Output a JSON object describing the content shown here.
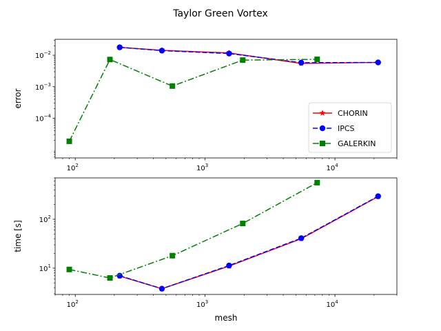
{
  "figure_title": "Taylor Green Vortex",
  "colors": {
    "chorin": "#ff0000",
    "ipcs": "#0000ff",
    "galerkin": "#008000"
  },
  "chart_data": [
    {
      "type": "line",
      "ylabel": "error",
      "x_scale": "log",
      "y_scale": "log",
      "xlim": [
        70,
        30000
      ],
      "ylim": [
        5.5e-06,
        0.032
      ],
      "x_ticks": [
        {
          "value": 100,
          "base": "10",
          "exp": "2"
        },
        {
          "value": 1000,
          "base": "10",
          "exp": "3"
        },
        {
          "value": 10000,
          "base": "10",
          "exp": "4"
        }
      ],
      "y_ticks": [
        {
          "value": 0.0001,
          "base": "10",
          "exp": "−4"
        },
        {
          "value": 0.001,
          "base": "10",
          "exp": "−3"
        },
        {
          "value": 0.01,
          "base": "10",
          "exp": "−2"
        }
      ],
      "legend": {
        "placement": "lower-right",
        "entries": [
          {
            "label": "CHORIN",
            "key": "chorin"
          },
          {
            "label": "IPCS",
            "key": "ipcs"
          },
          {
            "label": "GALERKIN",
            "key": "galerkin"
          }
        ]
      },
      "series": [
        {
          "name": "CHORIN",
          "key": "chorin",
          "style": "solid",
          "marker": "star",
          "x": [
            220,
            465,
            1530,
            5500,
            21500
          ],
          "y": [
            0.0178,
            0.0143,
            0.0118,
            0.0055,
            0.0059
          ]
        },
        {
          "name": "IPCS",
          "key": "ipcs",
          "style": "dashed",
          "marker": "circle",
          "x": [
            220,
            465,
            1530,
            5500,
            21500
          ],
          "y": [
            0.0178,
            0.014,
            0.0113,
            0.0058,
            0.0059
          ]
        },
        {
          "name": "GALERKIN",
          "key": "galerkin",
          "style": "dashdot",
          "marker": "square",
          "x": [
            90,
            185,
            560,
            1950,
            7300
          ],
          "y": [
            1.85e-05,
            0.0073,
            0.00105,
            0.007,
            0.0074
          ]
        }
      ]
    },
    {
      "type": "line",
      "ylabel": "time [s]",
      "xlabel": "mesh",
      "x_scale": "log",
      "y_scale": "log",
      "xlim": [
        70,
        30000
      ],
      "ylim": [
        2.9,
        700
      ],
      "x_ticks": [
        {
          "value": 100,
          "base": "10",
          "exp": "2"
        },
        {
          "value": 1000,
          "base": "10",
          "exp": "3"
        },
        {
          "value": 10000,
          "base": "10",
          "exp": "4"
        }
      ],
      "y_ticks": [
        {
          "value": 10,
          "base": "10",
          "exp": "1"
        },
        {
          "value": 100,
          "base": "10",
          "exp": "2"
        }
      ],
      "series": [
        {
          "name": "CHORIN",
          "key": "chorin",
          "style": "solid",
          "marker": "star",
          "x": [
            220,
            465,
            1530,
            5500,
            21500
          ],
          "y": [
            6.9,
            3.8,
            11.0,
            40,
            290
          ]
        },
        {
          "name": "IPCS",
          "key": "ipcs",
          "style": "dashed",
          "marker": "circle",
          "x": [
            220,
            465,
            1530,
            5500,
            21500
          ],
          "y": [
            7.0,
            3.8,
            11.3,
            41,
            295
          ]
        },
        {
          "name": "GALERKIN",
          "key": "galerkin",
          "style": "dashdot",
          "marker": "square",
          "x": [
            90,
            185,
            560,
            1950,
            7300
          ],
          "y": [
            9.4,
            6.3,
            18,
            82,
            560
          ]
        }
      ]
    }
  ]
}
